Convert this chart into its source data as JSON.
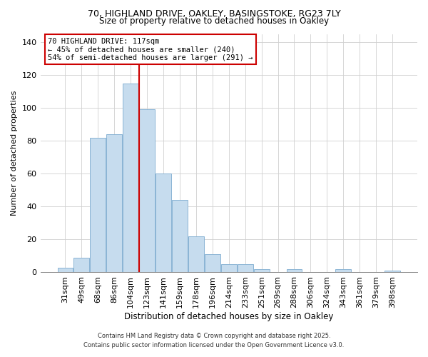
{
  "title1": "70, HIGHLAND DRIVE, OAKLEY, BASINGSTOKE, RG23 7LY",
  "title2": "Size of property relative to detached houses in Oakley",
  "xlabel": "Distribution of detached houses by size in Oakley",
  "ylabel": "Number of detached properties",
  "categories": [
    "31sqm",
    "49sqm",
    "68sqm",
    "86sqm",
    "104sqm",
    "123sqm",
    "141sqm",
    "159sqm",
    "178sqm",
    "196sqm",
    "214sqm",
    "233sqm",
    "251sqm",
    "269sqm",
    "288sqm",
    "306sqm",
    "324sqm",
    "343sqm",
    "361sqm",
    "379sqm",
    "398sqm"
  ],
  "values": [
    3,
    9,
    82,
    84,
    115,
    99,
    60,
    44,
    22,
    11,
    5,
    5,
    2,
    0,
    2,
    0,
    0,
    2,
    0,
    0,
    1
  ],
  "bar_color": "#c6dcee",
  "bar_edge_color": "#8ab4d4",
  "highlight_line_color": "#cc0000",
  "annotation_line1": "70 HIGHLAND DRIVE: 117sqm",
  "annotation_line2": "← 45% of detached houses are smaller (240)",
  "annotation_line3": "54% of semi-detached houses are larger (291) →",
  "annotation_box_facecolor": "#ffffff",
  "annotation_box_edgecolor": "#cc0000",
  "ylim": [
    0,
    145
  ],
  "yticks": [
    0,
    20,
    40,
    60,
    80,
    100,
    120,
    140
  ],
  "footer1": "Contains HM Land Registry data © Crown copyright and database right 2025.",
  "footer2": "Contains public sector information licensed under the Open Government Licence v3.0.",
  "background_color": "#ffffff",
  "grid_color": "#d0d0d0"
}
